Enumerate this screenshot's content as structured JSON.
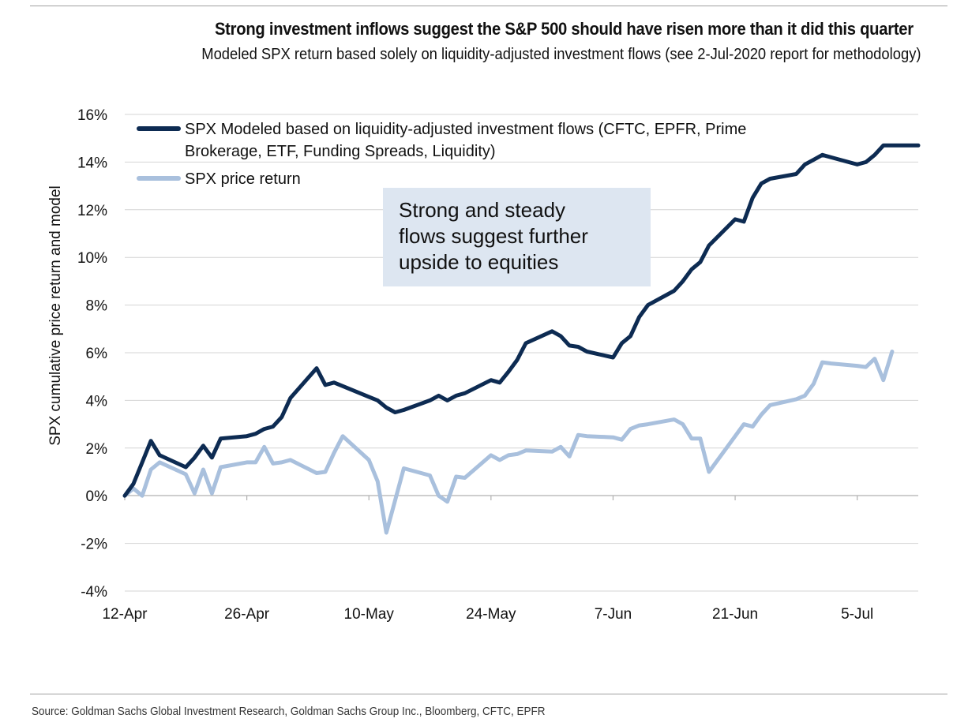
{
  "header": {
    "title": "Strong investment inflows suggest the S&P 500 should have risen more than it did this quarter",
    "subtitle": "Modeled SPX return based solely on liquidity-adjusted investment flows (see 2-Jul-2020 report for methodology)"
  },
  "footer": {
    "source": "Source: Goldman Sachs Global Investment Research, Goldman Sachs Group Inc., Bloomberg, CFTC, EPFR"
  },
  "chart_data": {
    "type": "line",
    "title": "Strong investment inflows suggest the S&P 500 should have risen more than it did this quarter",
    "subtitle": "Modeled SPX return based solely on liquidity-adjusted investment flows (see 2-Jul-2020 report for methodology)",
    "xlabel": "",
    "ylabel": "SPX cumulative price return and model",
    "x_unit": "days since 12-Apr",
    "xlim": [
      0,
      91
    ],
    "ylim": [
      -4,
      16
    ],
    "yticks": [
      -4,
      -2,
      0,
      2,
      4,
      6,
      8,
      10,
      12,
      14,
      16
    ],
    "ytick_labels": [
      "-4%",
      "-2%",
      "0%",
      "2%",
      "4%",
      "6%",
      "8%",
      "10%",
      "12%",
      "14%",
      "16%"
    ],
    "xticks": [
      0,
      14,
      28,
      42,
      56,
      70,
      84
    ],
    "xtick_labels": [
      "12-Apr",
      "26-Apr",
      "10-May",
      "24-May",
      "7-Jun",
      "21-Jun",
      "5-Jul"
    ],
    "grid": true,
    "legend_position": "top-left",
    "annotation": "Strong and steady flows suggest further upside to equities",
    "series": [
      {
        "name": "SPX Modeled based on liquidity-adjusted investment flows (CFTC, EPFR, Prime Brokerage, ETF, Funding Spreads, Liquidity)",
        "color": "#0d2b52",
        "x": [
          0,
          1,
          2,
          3,
          4,
          7,
          8,
          9,
          10,
          11,
          14,
          15,
          16,
          17,
          18,
          19,
          22,
          23,
          24,
          25,
          28,
          29,
          30,
          31,
          32,
          35,
          36,
          37,
          38,
          39,
          42,
          43,
          44,
          45,
          46,
          49,
          50,
          51,
          52,
          53,
          56,
          57,
          58,
          59,
          60,
          63,
          64,
          65,
          66,
          67,
          70,
          71,
          72,
          73,
          74,
          77,
          78,
          79,
          80,
          81,
          84,
          85,
          86,
          87,
          88,
          89,
          90,
          91
        ],
        "y": [
          0.0,
          0.5,
          1.4,
          2.3,
          1.7,
          1.2,
          1.6,
          2.1,
          1.6,
          2.4,
          2.5,
          2.6,
          2.8,
          2.9,
          3.3,
          4.1,
          5.35,
          4.65,
          4.75,
          4.6,
          4.15,
          4.0,
          3.7,
          3.5,
          3.6,
          4.0,
          4.2,
          4.0,
          4.2,
          4.3,
          4.85,
          4.75,
          5.2,
          5.7,
          6.4,
          6.9,
          6.7,
          6.3,
          6.25,
          6.05,
          5.8,
          6.4,
          6.7,
          7.5,
          8.0,
          8.6,
          9.0,
          9.5,
          9.8,
          10.5,
          11.6,
          11.5,
          12.5,
          13.1,
          13.3,
          13.5,
          13.9,
          14.1,
          14.3,
          14.2,
          13.9,
          14.0,
          14.3,
          14.7,
          14.7,
          14.7,
          14.7,
          14.7
        ]
      },
      {
        "name": "SPX price return",
        "color": "#a9c0dd",
        "x": [
          0,
          1,
          2,
          3,
          4,
          7,
          8,
          9,
          10,
          11,
          14,
          15,
          16,
          17,
          18,
          19,
          22,
          23,
          24,
          25,
          28,
          29,
          30,
          31,
          32,
          35,
          36,
          37,
          38,
          39,
          42,
          43,
          44,
          45,
          46,
          49,
          50,
          51,
          52,
          53,
          56,
          57,
          58,
          59,
          60,
          63,
          64,
          65,
          66,
          67,
          70,
          71,
          72,
          73,
          74,
          77,
          78,
          79,
          80,
          81,
          84,
          85,
          86,
          87,
          88
        ],
        "y": [
          0.0,
          0.3,
          0.0,
          1.1,
          1.4,
          0.9,
          0.1,
          1.1,
          0.1,
          1.2,
          1.4,
          1.4,
          2.05,
          1.35,
          1.4,
          1.5,
          0.95,
          1.0,
          1.8,
          2.5,
          1.5,
          0.6,
          -1.55,
          -0.2,
          1.15,
          0.85,
          0.0,
          -0.25,
          0.8,
          0.75,
          1.7,
          1.5,
          1.7,
          1.75,
          1.9,
          1.85,
          2.05,
          1.65,
          2.55,
          2.5,
          2.45,
          2.35,
          2.8,
          2.95,
          3.0,
          3.2,
          3.0,
          2.4,
          2.4,
          1.0,
          2.5,
          3.0,
          2.9,
          3.4,
          3.8,
          4.05,
          4.2,
          4.7,
          5.6,
          5.55,
          5.45,
          5.4,
          5.75,
          4.85,
          6.05
        ]
      }
    ]
  }
}
